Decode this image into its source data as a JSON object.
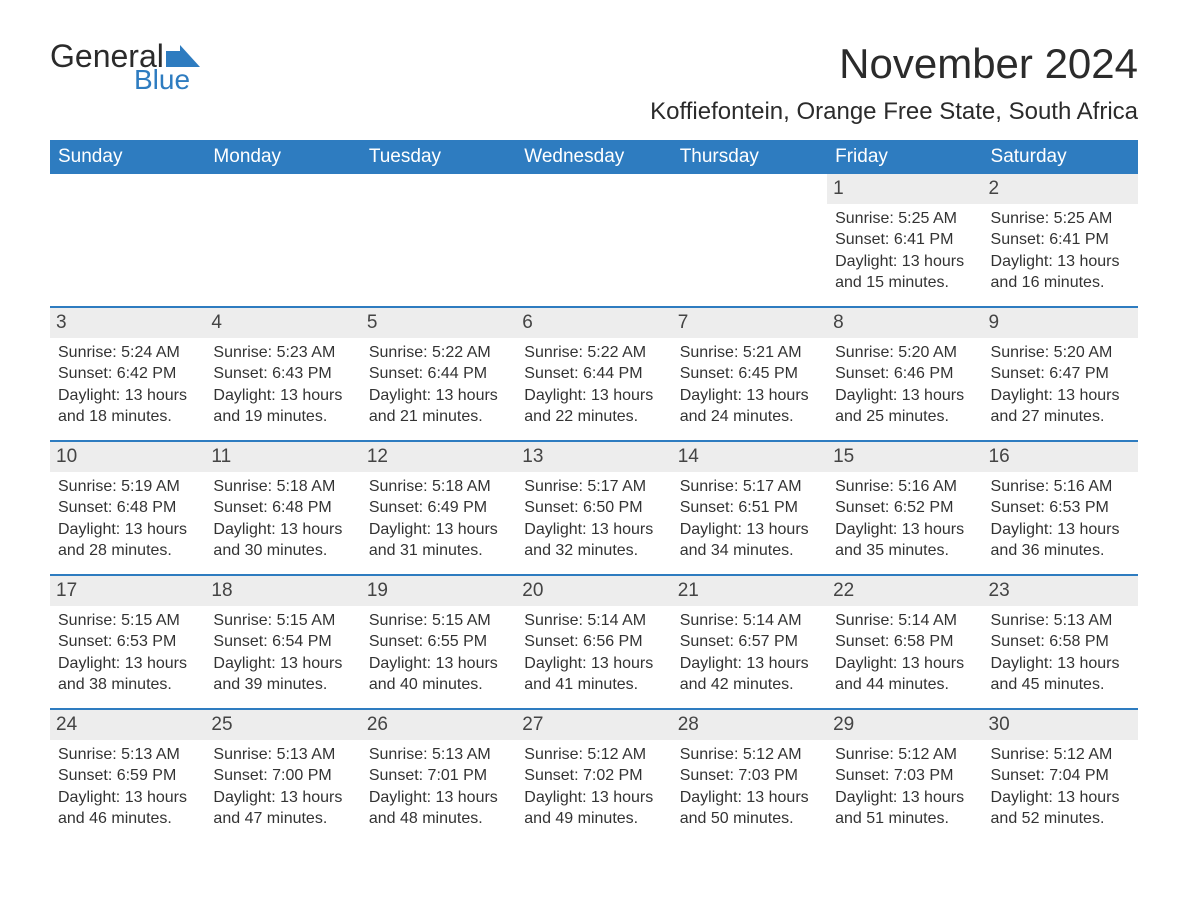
{
  "brand": {
    "word1": "General",
    "word2": "Blue",
    "icon_color": "#2e7cc0"
  },
  "title": "November 2024",
  "subtitle": "Koffiefontein, Orange Free State, South Africa",
  "colors": {
    "header_bg": "#2e7cc0",
    "header_text": "#ffffff",
    "week_divider": "#2e7cc0",
    "daynum_bg": "#ededed",
    "body_text": "#333333",
    "page_bg": "#ffffff"
  },
  "typography": {
    "title_fontsize": 42,
    "subtitle_fontsize": 24,
    "weekday_fontsize": 19,
    "daynum_fontsize": 19,
    "body_fontsize": 16,
    "font_family": "Arial"
  },
  "weekdays": [
    "Sunday",
    "Monday",
    "Tuesday",
    "Wednesday",
    "Thursday",
    "Friday",
    "Saturday"
  ],
  "weeks": [
    [
      {
        "empty": true
      },
      {
        "empty": true
      },
      {
        "empty": true
      },
      {
        "empty": true
      },
      {
        "empty": true
      },
      {
        "num": "1",
        "sunrise": "Sunrise: 5:25 AM",
        "sunset": "Sunset: 6:41 PM",
        "daylight1": "Daylight: 13 hours",
        "daylight2": "and 15 minutes."
      },
      {
        "num": "2",
        "sunrise": "Sunrise: 5:25 AM",
        "sunset": "Sunset: 6:41 PM",
        "daylight1": "Daylight: 13 hours",
        "daylight2": "and 16 minutes."
      }
    ],
    [
      {
        "num": "3",
        "sunrise": "Sunrise: 5:24 AM",
        "sunset": "Sunset: 6:42 PM",
        "daylight1": "Daylight: 13 hours",
        "daylight2": "and 18 minutes."
      },
      {
        "num": "4",
        "sunrise": "Sunrise: 5:23 AM",
        "sunset": "Sunset: 6:43 PM",
        "daylight1": "Daylight: 13 hours",
        "daylight2": "and 19 minutes."
      },
      {
        "num": "5",
        "sunrise": "Sunrise: 5:22 AM",
        "sunset": "Sunset: 6:44 PM",
        "daylight1": "Daylight: 13 hours",
        "daylight2": "and 21 minutes."
      },
      {
        "num": "6",
        "sunrise": "Sunrise: 5:22 AM",
        "sunset": "Sunset: 6:44 PM",
        "daylight1": "Daylight: 13 hours",
        "daylight2": "and 22 minutes."
      },
      {
        "num": "7",
        "sunrise": "Sunrise: 5:21 AM",
        "sunset": "Sunset: 6:45 PM",
        "daylight1": "Daylight: 13 hours",
        "daylight2": "and 24 minutes."
      },
      {
        "num": "8",
        "sunrise": "Sunrise: 5:20 AM",
        "sunset": "Sunset: 6:46 PM",
        "daylight1": "Daylight: 13 hours",
        "daylight2": "and 25 minutes."
      },
      {
        "num": "9",
        "sunrise": "Sunrise: 5:20 AM",
        "sunset": "Sunset: 6:47 PM",
        "daylight1": "Daylight: 13 hours",
        "daylight2": "and 27 minutes."
      }
    ],
    [
      {
        "num": "10",
        "sunrise": "Sunrise: 5:19 AM",
        "sunset": "Sunset: 6:48 PM",
        "daylight1": "Daylight: 13 hours",
        "daylight2": "and 28 minutes."
      },
      {
        "num": "11",
        "sunrise": "Sunrise: 5:18 AM",
        "sunset": "Sunset: 6:48 PM",
        "daylight1": "Daylight: 13 hours",
        "daylight2": "and 30 minutes."
      },
      {
        "num": "12",
        "sunrise": "Sunrise: 5:18 AM",
        "sunset": "Sunset: 6:49 PM",
        "daylight1": "Daylight: 13 hours",
        "daylight2": "and 31 minutes."
      },
      {
        "num": "13",
        "sunrise": "Sunrise: 5:17 AM",
        "sunset": "Sunset: 6:50 PM",
        "daylight1": "Daylight: 13 hours",
        "daylight2": "and 32 minutes."
      },
      {
        "num": "14",
        "sunrise": "Sunrise: 5:17 AM",
        "sunset": "Sunset: 6:51 PM",
        "daylight1": "Daylight: 13 hours",
        "daylight2": "and 34 minutes."
      },
      {
        "num": "15",
        "sunrise": "Sunrise: 5:16 AM",
        "sunset": "Sunset: 6:52 PM",
        "daylight1": "Daylight: 13 hours",
        "daylight2": "and 35 minutes."
      },
      {
        "num": "16",
        "sunrise": "Sunrise: 5:16 AM",
        "sunset": "Sunset: 6:53 PM",
        "daylight1": "Daylight: 13 hours",
        "daylight2": "and 36 minutes."
      }
    ],
    [
      {
        "num": "17",
        "sunrise": "Sunrise: 5:15 AM",
        "sunset": "Sunset: 6:53 PM",
        "daylight1": "Daylight: 13 hours",
        "daylight2": "and 38 minutes."
      },
      {
        "num": "18",
        "sunrise": "Sunrise: 5:15 AM",
        "sunset": "Sunset: 6:54 PM",
        "daylight1": "Daylight: 13 hours",
        "daylight2": "and 39 minutes."
      },
      {
        "num": "19",
        "sunrise": "Sunrise: 5:15 AM",
        "sunset": "Sunset: 6:55 PM",
        "daylight1": "Daylight: 13 hours",
        "daylight2": "and 40 minutes."
      },
      {
        "num": "20",
        "sunrise": "Sunrise: 5:14 AM",
        "sunset": "Sunset: 6:56 PM",
        "daylight1": "Daylight: 13 hours",
        "daylight2": "and 41 minutes."
      },
      {
        "num": "21",
        "sunrise": "Sunrise: 5:14 AM",
        "sunset": "Sunset: 6:57 PM",
        "daylight1": "Daylight: 13 hours",
        "daylight2": "and 42 minutes."
      },
      {
        "num": "22",
        "sunrise": "Sunrise: 5:14 AM",
        "sunset": "Sunset: 6:58 PM",
        "daylight1": "Daylight: 13 hours",
        "daylight2": "and 44 minutes."
      },
      {
        "num": "23",
        "sunrise": "Sunrise: 5:13 AM",
        "sunset": "Sunset: 6:58 PM",
        "daylight1": "Daylight: 13 hours",
        "daylight2": "and 45 minutes."
      }
    ],
    [
      {
        "num": "24",
        "sunrise": "Sunrise: 5:13 AM",
        "sunset": "Sunset: 6:59 PM",
        "daylight1": "Daylight: 13 hours",
        "daylight2": "and 46 minutes."
      },
      {
        "num": "25",
        "sunrise": "Sunrise: 5:13 AM",
        "sunset": "Sunset: 7:00 PM",
        "daylight1": "Daylight: 13 hours",
        "daylight2": "and 47 minutes."
      },
      {
        "num": "26",
        "sunrise": "Sunrise: 5:13 AM",
        "sunset": "Sunset: 7:01 PM",
        "daylight1": "Daylight: 13 hours",
        "daylight2": "and 48 minutes."
      },
      {
        "num": "27",
        "sunrise": "Sunrise: 5:12 AM",
        "sunset": "Sunset: 7:02 PM",
        "daylight1": "Daylight: 13 hours",
        "daylight2": "and 49 minutes."
      },
      {
        "num": "28",
        "sunrise": "Sunrise: 5:12 AM",
        "sunset": "Sunset: 7:03 PM",
        "daylight1": "Daylight: 13 hours",
        "daylight2": "and 50 minutes."
      },
      {
        "num": "29",
        "sunrise": "Sunrise: 5:12 AM",
        "sunset": "Sunset: 7:03 PM",
        "daylight1": "Daylight: 13 hours",
        "daylight2": "and 51 minutes."
      },
      {
        "num": "30",
        "sunrise": "Sunrise: 5:12 AM",
        "sunset": "Sunset: 7:04 PM",
        "daylight1": "Daylight: 13 hours",
        "daylight2": "and 52 minutes."
      }
    ]
  ]
}
